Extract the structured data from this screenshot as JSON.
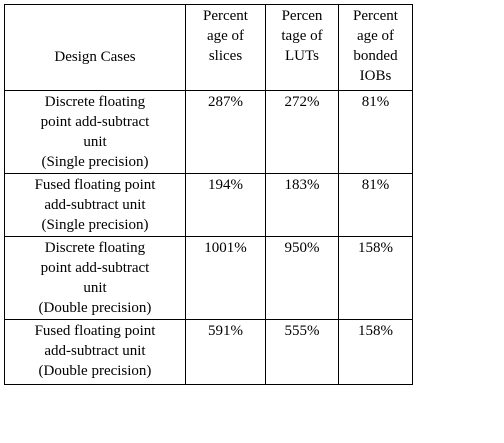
{
  "table": {
    "header": [
      "Design Cases",
      "Percent\nage of\nslices",
      "Percen\ntage of\nLUTs",
      "Percent\nage of\nbonded\nIOBs"
    ],
    "rows": [
      [
        "Discrete floating\npoint add-subtract\nunit\n(Single precision)",
        "287%",
        "272%",
        "81%"
      ],
      [
        "Fused floating point\nadd-subtract unit\n(Single precision)",
        "194%",
        "183%",
        "81%"
      ],
      [
        "Discrete floating\npoint add-subtract\nunit\n(Double precision)",
        "1001%",
        "950%",
        "158%"
      ],
      [
        "Fused floating point\nadd-subtract unit\n(Double precision)",
        "591%",
        "555%",
        "158%"
      ]
    ]
  }
}
